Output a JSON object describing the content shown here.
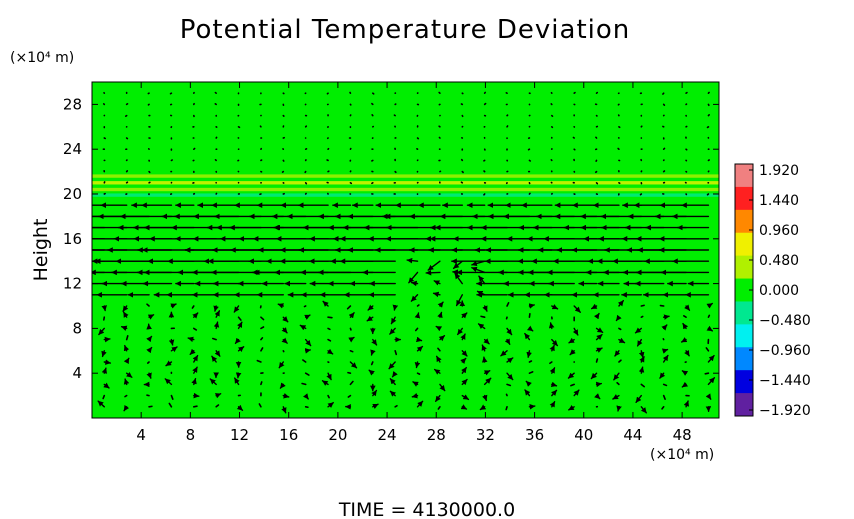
{
  "chart_data": {
    "type": "heatmap",
    "title": "Potential Temperature Deviation",
    "ylabel": "Height",
    "y_unit_label": "(×10⁴ m)",
    "x_unit_label": "(×10⁴ m)",
    "x_ticks": [
      "4",
      "8",
      "12",
      "16",
      "20",
      "24",
      "28",
      "32",
      "36",
      "40",
      "44",
      "48"
    ],
    "y_ticks": [
      "4",
      "8",
      "12",
      "16",
      "20",
      "24",
      "28"
    ],
    "xlim": [
      0,
      51
    ],
    "ylim": [
      0,
      30
    ],
    "colorbar": {
      "range": [
        -1.92,
        1.92
      ],
      "tick_labels": [
        "1.920",
        "1.440",
        "0.960",
        "0.480",
        "0.000",
        "−0.480",
        "−0.960",
        "−1.440",
        "−1.920"
      ],
      "colors": [
        "#f08080",
        "#ff2020",
        "#ff8800",
        "#f0f000",
        "#b0f000",
        "#00ee00",
        "#00e890",
        "#00f0f0",
        "#0088ff",
        "#0000e0",
        "#6020a0"
      ]
    },
    "background_value": 0.0,
    "field_bands": [
      {
        "y_center": 21.6,
        "thickness": 0.3,
        "value": 0.4
      },
      {
        "y_center": 21.0,
        "thickness": 0.3,
        "value": 0.55
      },
      {
        "y_center": 20.4,
        "thickness": 0.3,
        "value": 0.45
      },
      {
        "y_center": 19.9,
        "thickness": 0.3,
        "value": -0.5
      }
    ],
    "wind_jet": {
      "levels": [
        19,
        18,
        17,
        16,
        15,
        14,
        13,
        12,
        11
      ],
      "direction": "westward",
      "max_length": 4.5
    },
    "vector_field": "wind arrows",
    "time_label": "TIME  =  4130000.0"
  }
}
